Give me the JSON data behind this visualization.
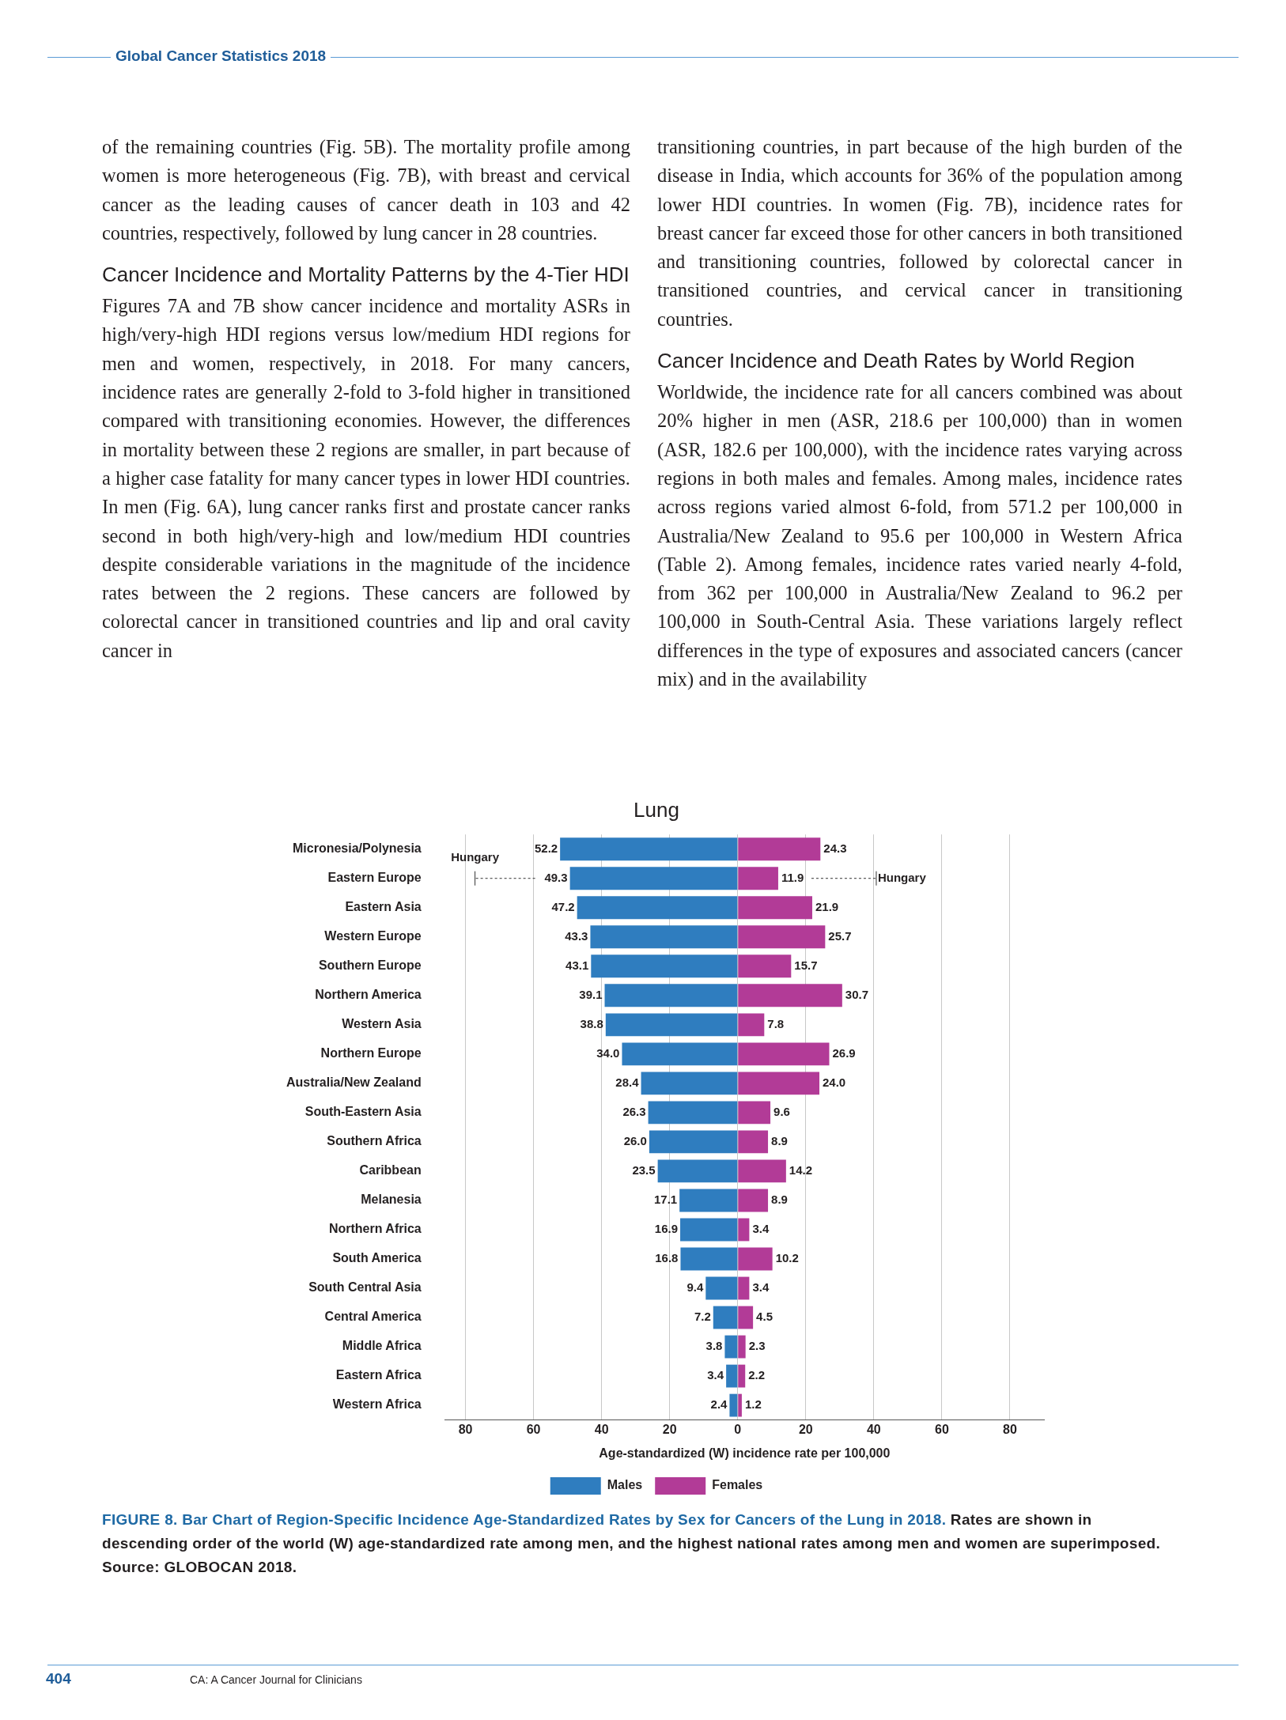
{
  "chart_data": {
    "type": "bar",
    "orientation": "horizontal",
    "title": "Lung",
    "xlabel": "Age-standardized (W) incidence rate per 100,000",
    "categories": [
      "Micronesia/Polynesia",
      "Eastern Europe",
      "Eastern Asia",
      "Western Europe",
      "Southern Europe",
      "Northern America",
      "Western Asia",
      "Northern Europe",
      "Australia/New Zealand",
      "South-Eastern Asia",
      "Southern Africa",
      "Caribbean",
      "Melanesia",
      "Northern Africa",
      "South America",
      "South Central Asia",
      "Central America",
      "Middle Africa",
      "Eastern Africa",
      "Western Africa"
    ],
    "series": [
      {
        "name": "Males",
        "color": "#2f7dbf",
        "values": [
          52.2,
          49.3,
          47.2,
          43.3,
          43.1,
          39.1,
          38.8,
          34.0,
          28.4,
          26.3,
          26.0,
          23.5,
          17.1,
          16.9,
          16.8,
          9.4,
          7.2,
          3.8,
          3.4,
          2.4
        ],
        "base": [
          -52.2,
          -49.3,
          -47.2,
          -43.3,
          -43.1,
          -39.1,
          -38.8,
          -34.0,
          -28.4,
          -26.3,
          -26.0,
          -23.5,
          -17.1,
          -16.9,
          -16.8,
          -9.4,
          -7.2,
          -3.8,
          -3.4,
          -2.4
        ],
        "value_labels": [
          "52.2",
          "49.3",
          "47.2",
          "43.3",
          "43.1",
          "39.1",
          "38.8",
          "34.0",
          "28.4",
          "26.3",
          "26.0",
          "23.5",
          "17.1",
          "16.9",
          "16.8",
          "9.4",
          "7.2",
          "3.8",
          "3.4",
          "2.4"
        ]
      },
      {
        "name": "Females",
        "color": "#b23b97",
        "values": [
          24.3,
          11.9,
          21.9,
          25.7,
          15.7,
          30.7,
          7.8,
          26.9,
          24.0,
          9.6,
          8.9,
          14.2,
          8.9,
          3.4,
          10.2,
          3.4,
          4.5,
          2.3,
          2.2,
          1.2
        ],
        "value_labels": [
          "24.3",
          "11.9",
          "21.9",
          "25.7",
          "15.7",
          "30.7",
          "7.8",
          "26.9",
          "24.0",
          "9.6",
          "8.9",
          "14.2",
          "8.9",
          "3.4",
          "10.2",
          "3.4",
          "4.5",
          "2.3",
          "2.2",
          "1.2"
        ]
      }
    ],
    "xlim": [
      -86,
      90
    ],
    "xticks": [
      {
        "value": -80,
        "label": "80"
      },
      {
        "value": -60,
        "label": "60"
      },
      {
        "value": -40,
        "label": "40"
      },
      {
        "value": -20,
        "label": "20"
      },
      0,
      20,
      40,
      60,
      80
    ],
    "grid": "x",
    "legend": "bottom",
    "annotations": [
      "Global Cancer Statistics 2018",
      "of the remaining countries (Fig. 5B). The mortality profile among women is more heterogeneous (Fig. 7B), with breast and cervical cancer as the leading causes of cancer death in 103 and 42 countries, respectively, followed by lung cancer in 28 countries.",
      "Cancer Incidence and Mortality Patterns by the 4-Tier HDI",
      "Figures 7A and 7B show cancer incidence and mortality ASRs in high/very-high HDI regions versus low/medium HDI regions for men and women, respectively, in 2018. For many cancers, incidence rates are generally 2-fold to 3-fold higher in transitioned compared with transitioning economies. However, the differences in mortality between these 2 regions are smaller, in part because of a higher case fatality for many cancer types in lower HDI countries. In men (Fig. 6A), lung cancer ranks first and prostate cancer ranks second in both high/very-high and low/medium HDI countries despite considerable variations in the magnitude of the incidence rates between the 2 regions. These cancers are followed by colorectal cancer in transitioned countries and lip and oral cavity cancer in",
      "transitioning countries, in part because of the high burden of the disease in India, which accounts for 36% of the population among lower HDI countries. In women (Fig. 7B), incidence rates for breast cancer far exceed those for other cancers in both transitioned and transitioning countries, followed by colorectal cancer in transitioned countries, and cervical cancer in transitioning countries.",
      "Cancer Incidence and Death Rates by World Region",
      "Worldwide, the incidence rate for all cancers combined was about 20% higher in men (ASR, 218.6 per 100,000) than in women (ASR, 182.6 per 100,000), with the incidence rates varying across regions in both males and females. Among males, incidence rates across regions varied almost 6-fold, from 571.2 per 100,000 in Australia/New Zealand to 95.6 per 100,000 in Western Africa (Table 2). Among females, incidence rates varied nearly 4-fold, from 362 per 100,000 in Australia/New Zealand to 96.2 per 100,000 in South-Central Asia. These variations largely reflect differences in the type of exposures and associated cancers (cancer mix) and in the availability",
      "FIGURE 8. Bar Chart of Region-Specific Incidence Age-Standardized Rates by Sex for Cancers of the Lung in 2018.",
      "Rates are shown in descending order of the world (W) age-standardized rate among men, and the highest national rates among men and women are superimposed. Source: GLOBOCAN 2018.",
      "404",
      "CA: A Cancer Journal for Clinicians",
      "Hungary",
      "Hungary"
    ]
  }
}
